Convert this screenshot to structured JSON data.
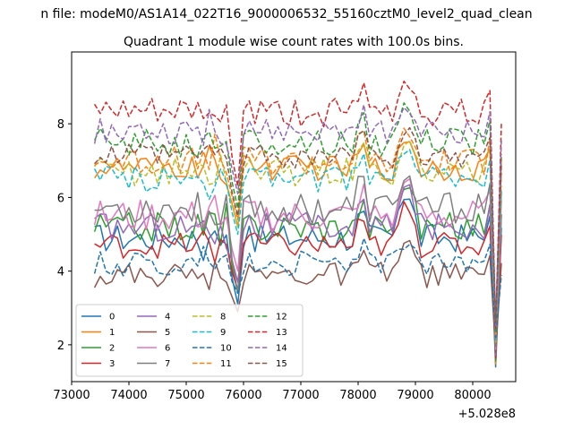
{
  "chart_data": {
    "type": "line",
    "suptitle": "n file: modeM0/AS1A14_022T16_9000006532_55160cztM0_level2_quad_clean",
    "title": "Quadrant 1 module wise count rates with 100.0s bins.",
    "x_offset_label": "+5.028e8",
    "x_tick_labels": [
      "73000",
      "74000",
      "75000",
      "76000",
      "77000",
      "78000",
      "79000",
      "80000"
    ],
    "y_tick_labels": [
      "2",
      "4",
      "6",
      "8"
    ],
    "xlim": [
      73000,
      80750
    ],
    "ylim": [
      1.0,
      9.95
    ],
    "grid": false,
    "legend_placement": "lower-left",
    "legend_columns": 4,
    "x_start": 73400,
    "x_step": 100,
    "series": [
      {
        "name": "0",
        "color": "#1f77b4",
        "dash": "solid",
        "base": 4.9,
        "amp": 0.4,
        "dip": 1.8,
        "peak": 1.4
      },
      {
        "name": "1",
        "color": "#ff7f0e",
        "dash": "solid",
        "base": 6.8,
        "amp": 0.35,
        "dip": 1.6,
        "peak": 1.0
      },
      {
        "name": "2",
        "color": "#2ca02c",
        "dash": "solid",
        "base": 5.2,
        "amp": 0.4,
        "dip": 1.8,
        "peak": 1.5
      },
      {
        "name": "3",
        "color": "#d62728",
        "dash": "solid",
        "base": 4.7,
        "amp": 0.35,
        "dip": 1.2,
        "peak": 1.3
      },
      {
        "name": "4",
        "color": "#9467bd",
        "dash": "solid",
        "base": 5.2,
        "amp": 0.4,
        "dip": 1.5,
        "peak": 1.2
      },
      {
        "name": "5",
        "color": "#8c564b",
        "dash": "solid",
        "base": 3.9,
        "amp": 0.35,
        "dip": 1.0,
        "peak": 1.0
      },
      {
        "name": "6",
        "color": "#e377c2",
        "dash": "solid",
        "base": 5.5,
        "amp": 0.45,
        "dip": 1.5,
        "peak": 1.1
      },
      {
        "name": "7",
        "color": "#7f7f7f",
        "dash": "solid",
        "base": 5.7,
        "amp": 0.45,
        "dip": 2.3,
        "peak": 1.0
      },
      {
        "name": "8",
        "color": "#bcbd22",
        "dash": "dashed",
        "base": 6.7,
        "amp": 0.4,
        "dip": 1.5,
        "peak": 1.0
      },
      {
        "name": "9",
        "color": "#17becf",
        "dash": "dashed",
        "base": 6.5,
        "amp": 0.35,
        "dip": 1.5,
        "peak": 1.0
      },
      {
        "name": "10",
        "color": "#1f77b4",
        "dash": "dashed",
        "base": 4.2,
        "amp": 0.35,
        "dip": 0.8,
        "peak": 0.7
      },
      {
        "name": "11",
        "color": "#ff7f0e",
        "dash": "dashed",
        "base": 7.0,
        "amp": 0.4,
        "dip": 1.6,
        "peak": 0.9
      },
      {
        "name": "12",
        "color": "#2ca02c",
        "dash": "dashed",
        "base": 7.5,
        "amp": 0.4,
        "dip": 1.8,
        "peak": 1.2
      },
      {
        "name": "13",
        "color": "#d62728",
        "dash": "dashed",
        "base": 8.3,
        "amp": 0.4,
        "dip": 2.0,
        "peak": 1.0
      },
      {
        "name": "14",
        "color": "#9467bd",
        "dash": "dashed",
        "base": 7.8,
        "amp": 0.35,
        "dip": 1.7,
        "peak": 0.8
      },
      {
        "name": "15",
        "color": "#8c564b",
        "dash": "dashed",
        "base": 7.1,
        "amp": 0.35,
        "dip": 1.6,
        "peak": 0.8
      }
    ]
  }
}
